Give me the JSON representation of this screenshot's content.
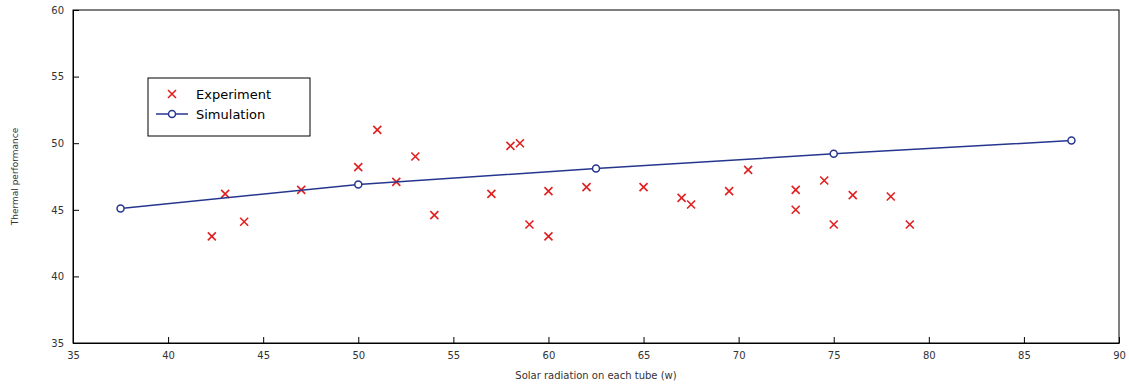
{
  "chart_data": {
    "type": "scatter",
    "x_label": "Solar radiation on each tube (w)",
    "y_label": "Thermal performance",
    "xlim": [
      35,
      90
    ],
    "xticks": [
      35,
      40,
      45,
      50,
      55,
      60,
      65,
      70,
      75,
      80,
      85,
      90
    ],
    "ylim": [
      35,
      60
    ],
    "yticks": [
      35,
      40,
      45,
      50,
      55,
      60
    ],
    "grid": false,
    "legend": "upper left",
    "series": [
      {
        "name": "Experiment",
        "type": "scatter",
        "color": "#e02020",
        "marker": "x",
        "x": [
          42.3,
          43,
          44,
          47,
          50,
          51,
          52,
          53,
          54,
          57,
          58,
          58.5,
          59,
          60,
          60,
          62,
          65,
          67,
          67.5,
          69.5,
          70.5,
          73,
          73,
          74.5,
          75,
          76,
          78,
          79
        ],
        "values": [
          43.0,
          46.2,
          44.1,
          46.5,
          48.2,
          51.0,
          47.1,
          49.0,
          44.6,
          46.2,
          49.8,
          50.0,
          43.9,
          46.4,
          43.0,
          46.7,
          46.7,
          45.9,
          45.4,
          46.4,
          48.0,
          46.5,
          45.0,
          47.2,
          43.9,
          46.1,
          46.0,
          43.9
        ]
      },
      {
        "name": "Simulation",
        "type": "line",
        "color": "#26368f",
        "marker": "o",
        "line_style": "solid",
        "x": [
          37.5,
          50,
          62.5,
          75,
          87.5
        ],
        "values": [
          45.1,
          46.9,
          48.1,
          49.2,
          50.2
        ]
      }
    ]
  }
}
